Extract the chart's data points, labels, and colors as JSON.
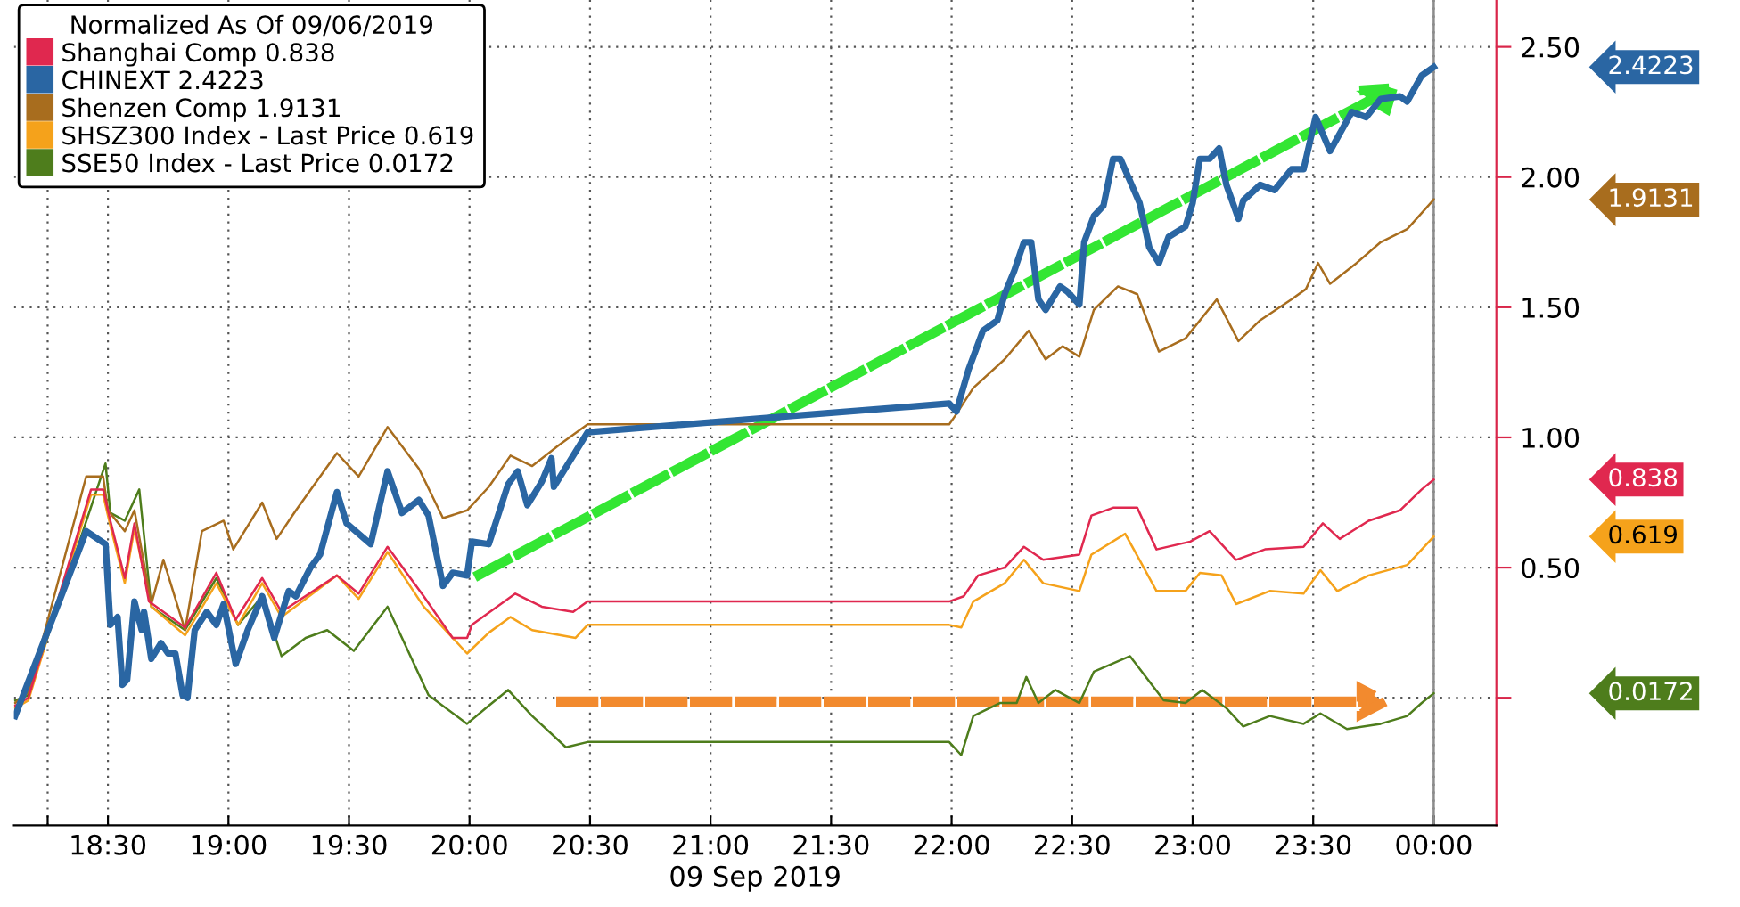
{
  "chart_data": {
    "type": "line",
    "xlabel": "09 Sep 2019",
    "legend_title": "Normalized As Of 09/06/2019",
    "legend": "top left",
    "grid": true,
    "line_style": "solid",
    "marker": "none",
    "xlim": [
      18.11,
      24.26
    ],
    "ylim": [
      -0.49,
      2.68
    ],
    "xticks": [
      {
        "value": 18.25,
        "label": null
      },
      {
        "value": 18.5,
        "label": "18:30"
      },
      {
        "value": 19.0,
        "label": "19:00"
      },
      {
        "value": 19.5,
        "label": "19:30"
      },
      {
        "value": 20.0,
        "label": "20:00"
      },
      {
        "value": 20.5,
        "label": "20:30"
      },
      {
        "value": 21.0,
        "label": "21:00"
      },
      {
        "value": 21.5,
        "label": "21:30"
      },
      {
        "value": 22.0,
        "label": "22:00"
      },
      {
        "value": 22.5,
        "label": "22:30"
      },
      {
        "value": 23.0,
        "label": "23:00"
      },
      {
        "value": 23.5,
        "label": "23:30"
      },
      {
        "value": 24.0,
        "label": "00:00"
      }
    ],
    "yticks": [
      {
        "value": 0,
        "label": null
      },
      {
        "value": 0.5,
        "label": "0.50"
      },
      {
        "value": 1.0,
        "label": "1.00"
      },
      {
        "value": 1.5,
        "label": "1.50"
      },
      {
        "value": 2.0,
        "label": "2.00"
      },
      {
        "value": 2.5,
        "label": "2.50"
      }
    ],
    "ref_lines": [
      {
        "axis": "x",
        "value": 24.0,
        "color": "#8c8c8c"
      }
    ],
    "annotations": [
      "0.838",
      "2.4223",
      "1.9131",
      "0.619",
      "0.0172"
    ],
    "series": [
      {
        "name": "Shanghai Comp 0.838",
        "color": "#e0284f",
        "x": [
          18.115,
          18.17,
          18.43,
          18.48,
          18.51,
          18.57,
          18.61,
          18.67,
          18.82,
          18.95,
          19.03,
          19.14,
          19.22,
          19.45,
          19.54,
          19.66,
          19.81,
          19.93,
          19.99,
          20.01,
          20.19,
          20.3,
          20.43,
          20.49,
          21.99,
          22.05,
          22.11,
          22.22,
          22.3,
          22.38,
          22.53,
          22.58,
          22.67,
          22.77,
          22.85,
          22.99,
          23.07,
          23.18,
          23.3,
          23.46,
          23.54,
          23.61,
          23.73,
          23.86,
          23.95,
          24.0
        ],
        "values": [
          -0.03,
          0.0,
          0.8,
          0.8,
          0.68,
          0.46,
          0.67,
          0.37,
          0.27,
          0.48,
          0.3,
          0.46,
          0.33,
          0.47,
          0.4,
          0.58,
          0.39,
          0.23,
          0.23,
          0.28,
          0.4,
          0.35,
          0.33,
          0.37,
          0.37,
          0.39,
          0.47,
          0.5,
          0.58,
          0.53,
          0.55,
          0.7,
          0.73,
          0.73,
          0.57,
          0.6,
          0.64,
          0.53,
          0.57,
          0.58,
          0.67,
          0.61,
          0.68,
          0.72,
          0.8,
          0.838
        ]
      },
      {
        "name": "CHINEXT 2.4223",
        "color": "#2a66a3",
        "x": [
          18.115,
          18.41,
          18.49,
          18.51,
          18.54,
          18.56,
          18.58,
          18.61,
          18.64,
          18.65,
          18.68,
          18.72,
          18.75,
          18.78,
          18.81,
          18.83,
          18.86,
          18.91,
          18.95,
          18.98,
          19.03,
          19.08,
          19.14,
          19.19,
          19.25,
          19.28,
          19.34,
          19.38,
          19.45,
          19.49,
          19.59,
          19.66,
          19.72,
          19.79,
          19.83,
          19.89,
          19.93,
          19.99,
          20.01,
          20.08,
          20.16,
          20.2,
          20.24,
          20.3,
          20.34,
          20.35,
          20.41,
          20.49,
          21.3,
          21.99,
          22.02,
          22.07,
          22.13,
          22.19,
          22.22,
          22.26,
          22.3,
          22.33,
          22.36,
          22.39,
          22.45,
          22.48,
          22.53,
          22.55,
          22.59,
          22.63,
          22.67,
          22.7,
          22.78,
          22.82,
          22.86,
          22.9,
          22.97,
          23.0,
          23.03,
          23.07,
          23.11,
          23.14,
          23.19,
          23.21,
          23.28,
          23.34,
          23.41,
          23.46,
          23.51,
          23.57,
          23.66,
          23.72,
          23.78,
          23.86,
          23.89,
          23.95,
          24.0
        ],
        "values": [
          -0.07,
          0.64,
          0.59,
          0.28,
          0.31,
          0.05,
          0.07,
          0.37,
          0.26,
          0.33,
          0.15,
          0.21,
          0.17,
          0.17,
          0.01,
          0.0,
          0.26,
          0.33,
          0.28,
          0.36,
          0.13,
          0.26,
          0.39,
          0.23,
          0.41,
          0.39,
          0.5,
          0.55,
          0.79,
          0.67,
          0.59,
          0.87,
          0.71,
          0.76,
          0.7,
          0.43,
          0.48,
          0.47,
          0.6,
          0.59,
          0.82,
          0.87,
          0.74,
          0.83,
          0.92,
          0.81,
          0.9,
          1.02,
          1.08,
          1.13,
          1.1,
          1.26,
          1.41,
          1.45,
          1.55,
          1.64,
          1.75,
          1.75,
          1.53,
          1.49,
          1.58,
          1.56,
          1.51,
          1.75,
          1.85,
          1.89,
          2.07,
          2.07,
          1.9,
          1.73,
          1.67,
          1.77,
          1.81,
          1.9,
          2.07,
          2.07,
          2.11,
          1.97,
          1.84,
          1.91,
          1.97,
          1.95,
          2.03,
          2.03,
          2.23,
          2.1,
          2.25,
          2.23,
          2.3,
          2.31,
          2.29,
          2.39,
          2.4223
        ]
      },
      {
        "name": "Shenzen Comp 1.9131",
        "color": "#a86d1e",
        "x": [
          18.115,
          18.17,
          18.41,
          18.48,
          18.5,
          18.57,
          18.61,
          18.68,
          18.73,
          18.82,
          18.89,
          18.98,
          19.02,
          19.14,
          19.2,
          19.28,
          19.45,
          19.54,
          19.66,
          19.79,
          19.89,
          19.99,
          20.08,
          20.17,
          20.26,
          20.37,
          20.49,
          21.99,
          22.02,
          22.09,
          22.22,
          22.32,
          22.39,
          22.46,
          22.53,
          22.59,
          22.69,
          22.77,
          22.86,
          22.97,
          23.1,
          23.19,
          23.28,
          23.41,
          23.47,
          23.52,
          23.57,
          23.68,
          23.78,
          23.89,
          24.0
        ],
        "values": [
          -0.02,
          0.02,
          0.85,
          0.85,
          0.72,
          0.64,
          0.72,
          0.36,
          0.53,
          0.26,
          0.64,
          0.68,
          0.57,
          0.75,
          0.61,
          0.72,
          0.94,
          0.85,
          1.04,
          0.88,
          0.69,
          0.72,
          0.81,
          0.93,
          0.89,
          0.97,
          1.05,
          1.05,
          1.09,
          1.19,
          1.3,
          1.41,
          1.3,
          1.35,
          1.31,
          1.49,
          1.58,
          1.55,
          1.33,
          1.38,
          1.53,
          1.37,
          1.45,
          1.53,
          1.57,
          1.67,
          1.59,
          1.67,
          1.75,
          1.8,
          1.9131
        ]
      },
      {
        "name": "SHSZ300 Index - Last Price 0.619",
        "color": "#f5a21b",
        "x": [
          18.115,
          18.17,
          18.43,
          18.48,
          18.51,
          18.57,
          18.61,
          18.68,
          18.82,
          18.95,
          19.04,
          19.14,
          19.22,
          19.45,
          19.54,
          19.66,
          19.81,
          19.99,
          20.08,
          20.17,
          20.26,
          20.44,
          20.49,
          21.99,
          22.04,
          22.09,
          22.22,
          22.3,
          22.38,
          22.53,
          22.58,
          22.72,
          22.85,
          22.97,
          23.03,
          23.12,
          23.18,
          23.32,
          23.46,
          23.53,
          23.6,
          23.73,
          23.89,
          24.0
        ],
        "values": [
          -0.04,
          -0.01,
          0.78,
          0.78,
          0.66,
          0.44,
          0.65,
          0.35,
          0.24,
          0.44,
          0.28,
          0.44,
          0.31,
          0.47,
          0.38,
          0.56,
          0.35,
          0.17,
          0.25,
          0.31,
          0.26,
          0.23,
          0.28,
          0.28,
          0.27,
          0.37,
          0.44,
          0.53,
          0.44,
          0.41,
          0.55,
          0.63,
          0.41,
          0.41,
          0.48,
          0.47,
          0.36,
          0.41,
          0.4,
          0.49,
          0.41,
          0.47,
          0.51,
          0.619
        ]
      },
      {
        "name": "SSE50 Index - Last Price 0.0172",
        "color": "#4e7d1c",
        "x": [
          18.115,
          18.17,
          18.49,
          18.51,
          18.57,
          18.63,
          18.68,
          18.82,
          18.95,
          19.04,
          19.14,
          19.22,
          19.32,
          19.41,
          19.52,
          19.66,
          19.83,
          19.99,
          20.08,
          20.16,
          20.26,
          20.4,
          20.49,
          21.99,
          22.04,
          22.09,
          22.2,
          22.27,
          22.31,
          22.36,
          22.43,
          22.53,
          22.59,
          22.74,
          22.88,
          22.97,
          23.04,
          23.14,
          23.21,
          23.32,
          23.46,
          23.53,
          23.64,
          23.78,
          23.89,
          23.95,
          24.0
        ],
        "values": [
          -0.01,
          0.01,
          0.9,
          0.71,
          0.68,
          0.8,
          0.35,
          0.26,
          0.46,
          0.28,
          0.39,
          0.16,
          0.23,
          0.26,
          0.18,
          0.35,
          0.01,
          -0.1,
          -0.03,
          0.03,
          -0.07,
          -0.19,
          -0.17,
          -0.17,
          -0.22,
          -0.07,
          -0.02,
          -0.02,
          0.08,
          -0.02,
          0.03,
          -0.02,
          0.1,
          0.16,
          -0.01,
          -0.02,
          0.03,
          -0.04,
          -0.11,
          -0.07,
          -0.1,
          -0.06,
          -0.12,
          -0.1,
          -0.07,
          -0.02,
          0.0172
        ]
      }
    ]
  }
}
